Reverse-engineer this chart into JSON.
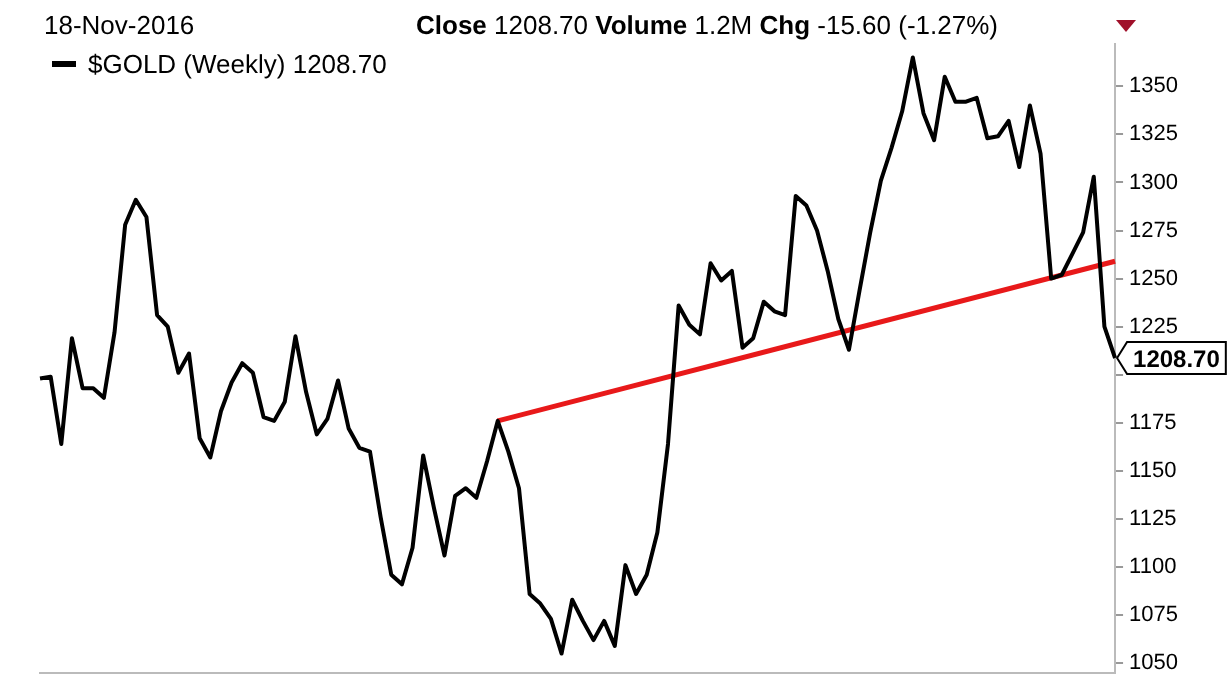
{
  "chart_data": {
    "type": "line",
    "title": "18-Nov-2016",
    "subtitle": "Close 1208.70 Volume 1.2M Chg -15.60 (-1.27%)",
    "categories": [
      null,
      null,
      null,
      null,
      null,
      null,
      null,
      null,
      null,
      null,
      null,
      null,
      null,
      null,
      null,
      null,
      null,
      null,
      null,
      null,
      null,
      null,
      null,
      null,
      null,
      null,
      null,
      null,
      null,
      null,
      null,
      null,
      null,
      null,
      null,
      null,
      null,
      null,
      null,
      null,
      null,
      null,
      null,
      null,
      null,
      null,
      null,
      null,
      null,
      null,
      null,
      null,
      null,
      null,
      null,
      null,
      null,
      null,
      null,
      null,
      null,
      null,
      null,
      null,
      null,
      null,
      null,
      null,
      null,
      null,
      null,
      null,
      null,
      null,
      null,
      null,
      null,
      null,
      null,
      null,
      null,
      null,
      null,
      null,
      null,
      null,
      null,
      null,
      null,
      null,
      null,
      null,
      null,
      null,
      null,
      null,
      null,
      null,
      null,
      null,
      null,
      null
    ],
    "series": [
      {
        "name": "$GOLD (Weekly) 1208.70",
        "color": "#000000",
        "values": [
          1198,
          1199,
          1164,
          1219,
          1193,
          1193,
          1188,
          1222,
          1278,
          1291,
          1282,
          1231,
          1225,
          1201,
          1211,
          1167,
          1157,
          1181,
          1196,
          1206,
          1201,
          1178,
          1176,
          1186,
          1220,
          1191,
          1169,
          1177,
          1197,
          1172,
          1162,
          1160,
          1126,
          1096,
          1091,
          1110,
          1158,
          1131,
          1106,
          1137,
          1141,
          1136,
          1155,
          1176,
          1160,
          1141,
          1086,
          1081,
          1073,
          1055,
          1083,
          1072,
          1062,
          1072,
          1059,
          1101,
          1086,
          1096,
          1118,
          1164,
          1236,
          1226,
          1221,
          1258,
          1249,
          1254,
          1214,
          1219,
          1238,
          1233,
          1231,
          1293,
          1288,
          1275,
          1254,
          1229,
          1213,
          1244,
          1274,
          1301,
          1318,
          1337,
          1365,
          1336,
          1322,
          1355,
          1342,
          1342,
          1344,
          1323,
          1324,
          1332,
          1308,
          1340,
          1315,
          1250,
          1252,
          1263,
          1274,
          1303,
          1225,
          1208.7
        ]
      },
      {
        "type": "line",
        "color": "#e8191a",
        "values": [
          null,
          null,
          null,
          null,
          null,
          null,
          null,
          null,
          null,
          null,
          null,
          null,
          null,
          null,
          null,
          null,
          null,
          null,
          null,
          null,
          null,
          null,
          null,
          null,
          null,
          null,
          null,
          null,
          null,
          null,
          null,
          null,
          null,
          null,
          null,
          null,
          null,
          null,
          null,
          null,
          null,
          null,
          null,
          1176,
          null,
          null,
          null,
          null,
          null,
          null,
          null,
          null,
          null,
          null,
          null,
          null,
          null,
          null,
          null,
          null,
          null,
          null,
          null,
          null,
          null,
          null,
          null,
          null,
          null,
          null,
          null,
          null,
          null,
          null,
          null,
          null,
          null,
          null,
          null,
          null,
          null,
          null,
          null,
          null,
          null,
          null,
          null,
          null,
          null,
          null,
          null,
          null,
          null,
          null,
          null,
          null,
          null,
          null,
          null,
          null,
          null,
          1259
        ]
      }
    ],
    "ylim": [
      1045,
      1372
    ],
    "yticks": [
      1050,
      1075,
      1100,
      1125,
      1150,
      1175,
      {
        "value": 1200,
        "label": null
      },
      1225,
      1250,
      1275,
      1300,
      1325,
      1350
    ],
    "annotations": [
      "1208.70"
    ],
    "grid": false,
    "legend": "top left",
    "marker": "none",
    "line_style": "solid",
    "tick_labels": "y"
  }
}
